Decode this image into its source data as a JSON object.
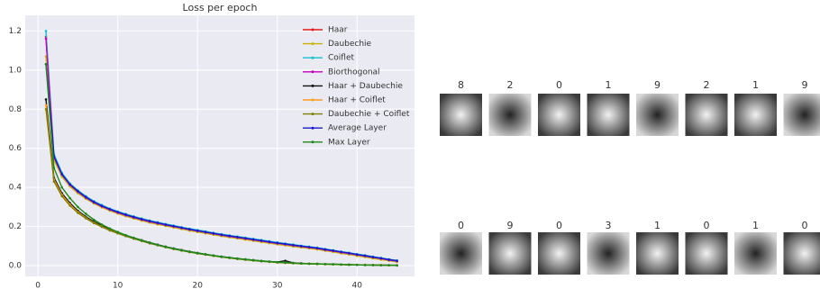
{
  "chart_data": {
    "type": "line",
    "title": "Loss per epoch",
    "x": [
      1,
      2,
      3,
      4,
      5,
      6,
      7,
      8,
      9,
      10,
      11,
      12,
      13,
      14,
      15,
      16,
      17,
      18,
      19,
      20,
      21,
      22,
      23,
      24,
      25,
      26,
      27,
      28,
      29,
      30,
      31,
      32,
      33,
      34,
      35,
      36,
      37,
      38,
      39,
      40,
      41,
      42,
      43,
      44,
      45
    ],
    "xlim": [
      -1.6,
      47.2
    ],
    "xticks": [
      0,
      10,
      20,
      30,
      40
    ],
    "ylim": [
      -0.055,
      1.28
    ],
    "yticks": [
      {
        "value": 0,
        "label": "0.0"
      },
      0.2,
      0.4,
      0.6,
      0.8,
      {
        "value": 1,
        "label": "1.0"
      },
      1.2
    ],
    "grid": true,
    "legend": "upper right",
    "series": [
      {
        "name": "Haar",
        "color": "#e41a1c",
        "values": [
          1.17,
          0.55,
          0.46,
          0.41,
          0.375,
          0.345,
          0.32,
          0.3,
          0.283,
          0.268,
          0.255,
          0.243,
          0.232,
          0.222,
          0.213,
          0.205,
          0.197,
          0.189,
          0.181,
          0.174,
          0.167,
          0.16,
          0.153,
          0.147,
          0.141,
          0.135,
          0.129,
          0.123,
          0.117,
          0.111,
          0.106,
          0.1,
          0.095,
          0.09,
          0.085,
          0.078,
          0.072,
          0.065,
          0.059,
          0.052,
          0.046,
          0.039,
          0.033,
          0.026,
          0.02
        ]
      },
      {
        "name": "Daubechie",
        "color": "#c8b400",
        "values": [
          1.07,
          0.54,
          0.455,
          0.405,
          0.37,
          0.342,
          0.318,
          0.298,
          0.281,
          0.266,
          0.253,
          0.241,
          0.23,
          0.22,
          0.211,
          0.203,
          0.195,
          0.187,
          0.179,
          0.172,
          0.165,
          0.158,
          0.151,
          0.145,
          0.139,
          0.133,
          0.127,
          0.121,
          0.115,
          0.109,
          0.104,
          0.098,
          0.093,
          0.088,
          0.083,
          0.076,
          0.07,
          0.063,
          0.057,
          0.05,
          0.044,
          0.037,
          0.031,
          0.025,
          0.019
        ]
      },
      {
        "name": "Coiflet",
        "color": "#17becf",
        "values": [
          1.2,
          0.57,
          0.475,
          0.42,
          0.385,
          0.355,
          0.33,
          0.31,
          0.292,
          0.277,
          0.264,
          0.252,
          0.241,
          0.231,
          0.222,
          0.213,
          0.205,
          0.197,
          0.189,
          0.182,
          0.175,
          0.168,
          0.161,
          0.155,
          0.149,
          0.143,
          0.137,
          0.131,
          0.125,
          0.119,
          0.113,
          0.108,
          0.102,
          0.097,
          0.092,
          0.085,
          0.079,
          0.072,
          0.066,
          0.059,
          0.053,
          0.046,
          0.04,
          0.033,
          0.027
        ]
      },
      {
        "name": "Biorthogonal",
        "color": "#c000c0",
        "values": [
          1.16,
          0.555,
          0.465,
          0.413,
          0.378,
          0.348,
          0.323,
          0.303,
          0.286,
          0.271,
          0.258,
          0.246,
          0.235,
          0.225,
          0.216,
          0.208,
          0.2,
          0.192,
          0.184,
          0.177,
          0.17,
          0.163,
          0.156,
          0.15,
          0.144,
          0.138,
          0.132,
          0.126,
          0.12,
          0.114,
          0.109,
          0.103,
          0.098,
          0.093,
          0.088,
          0.081,
          0.075,
          0.068,
          0.062,
          0.055,
          0.049,
          0.042,
          0.036,
          0.029,
          0.023
        ]
      },
      {
        "name": "Haar + Daubechie",
        "color": "#111111",
        "values": [
          0.85,
          0.45,
          0.37,
          0.32,
          0.28,
          0.25,
          0.225,
          0.205,
          0.185,
          0.17,
          0.155,
          0.142,
          0.13,
          0.118,
          0.107,
          0.097,
          0.088,
          0.08,
          0.072,
          0.065,
          0.058,
          0.052,
          0.046,
          0.041,
          0.036,
          0.032,
          0.028,
          0.024,
          0.021,
          0.018,
          0.025,
          0.014,
          0.012,
          0.01,
          0.009,
          0.008,
          0.007,
          0.006,
          0.005,
          0.004,
          0.004,
          0.003,
          0.003,
          0.002,
          0.002
        ]
      },
      {
        "name": "Haar + Coiflet",
        "color": "#ff9c1a",
        "values": [
          0.82,
          0.44,
          0.362,
          0.313,
          0.274,
          0.245,
          0.22,
          0.2,
          0.181,
          0.166,
          0.152,
          0.139,
          0.127,
          0.115,
          0.105,
          0.095,
          0.086,
          0.078,
          0.07,
          0.063,
          0.057,
          0.051,
          0.045,
          0.04,
          0.035,
          0.031,
          0.027,
          0.023,
          0.02,
          0.017,
          0.015,
          0.013,
          0.011,
          0.01,
          0.009,
          0.008,
          0.007,
          0.006,
          0.005,
          0.004,
          0.004,
          0.003,
          0.003,
          0.002,
          0.002
        ]
      },
      {
        "name": "Daubechie + Coiflet",
        "color": "#7f7f00",
        "values": [
          0.8,
          0.43,
          0.355,
          0.307,
          0.27,
          0.242,
          0.218,
          0.198,
          0.18,
          0.165,
          0.151,
          0.138,
          0.126,
          0.114,
          0.104,
          0.094,
          0.085,
          0.077,
          0.069,
          0.062,
          0.056,
          0.05,
          0.044,
          0.039,
          0.034,
          0.03,
          0.026,
          0.022,
          0.019,
          0.016,
          0.014,
          0.012,
          0.01,
          0.009,
          0.008,
          0.007,
          0.006,
          0.005,
          0.004,
          0.004,
          0.003,
          0.003,
          0.002,
          0.002,
          0.001
        ]
      },
      {
        "name": "Average Layer",
        "color": "#1a1acc",
        "values": [
          1.03,
          0.56,
          0.468,
          0.416,
          0.381,
          0.351,
          0.326,
          0.306,
          0.289,
          0.274,
          0.261,
          0.249,
          0.238,
          0.228,
          0.219,
          0.21,
          0.202,
          0.194,
          0.186,
          0.179,
          0.172,
          0.165,
          0.158,
          0.152,
          0.146,
          0.14,
          0.134,
          0.128,
          0.122,
          0.116,
          0.111,
          0.105,
          0.1,
          0.095,
          0.09,
          0.083,
          0.077,
          0.07,
          0.064,
          0.057,
          0.051,
          0.044,
          0.038,
          0.031,
          0.025
        ]
      },
      {
        "name": "Max Layer",
        "color": "#1a8a1a",
        "values": [
          1.03,
          0.5,
          0.4,
          0.345,
          0.3,
          0.265,
          0.235,
          0.21,
          0.19,
          0.172,
          0.156,
          0.142,
          0.129,
          0.117,
          0.106,
          0.096,
          0.087,
          0.079,
          0.071,
          0.064,
          0.058,
          0.052,
          0.046,
          0.041,
          0.036,
          0.032,
          0.028,
          0.024,
          0.021,
          0.018,
          0.016,
          0.013,
          0.011,
          0.01,
          0.009,
          0.008,
          0.007,
          0.006,
          0.005,
          0.004,
          0.003,
          0.003,
          0.002,
          0.002,
          0.001
        ]
      }
    ]
  },
  "samples": {
    "top_labels": [
      "8",
      "2",
      "0",
      "1",
      "9",
      "2",
      "1",
      "9"
    ],
    "bottom_labels": [
      "0",
      "9",
      "0",
      "3",
      "1",
      "0",
      "1",
      "0"
    ]
  }
}
